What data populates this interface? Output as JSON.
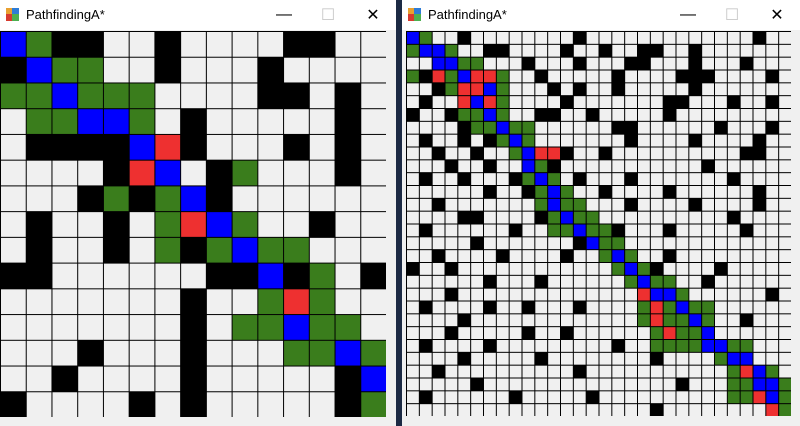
{
  "colors": {
    "wall": "#000000",
    "empty": "#f0f0f0",
    "path": "#0000ff",
    "closed": "#3a7d1c",
    "open": "#ee3030",
    "gridline": "#000000"
  },
  "windows": [
    {
      "title": "PathfindingA*",
      "controls": {
        "minimize": "—",
        "maximize": "☐",
        "close": "✕"
      },
      "grid": {
        "size": 15,
        "rows": [
          "PCWWEEWEEEEWWEE",
          "WPCCEEWEEEWEEEE",
          "CCPCCCEEEEWWEWE",
          "ECCPPCEWEEEEEWE",
          "EWWWWPOWEEEWEWE",
          "EEEEWOPEWCEEEWE",
          "EEEWCWCPWEEEEEE",
          "EWEEWECOPCEEWEE",
          "EWEEWECWCPCCEEE",
          "WWEEEEEEWWPWCEW",
          "EEEEEEEWEECOCEE",
          "EEEEEEEWECCPCCE",
          "EEEWEEEWEEECCPC",
          "EEWEEEEWEEEEEWP",
          "WEEEEWEWEEEEEWC"
        ]
      }
    },
    {
      "title": "PathfindingA*",
      "controls": {
        "minimize": "—",
        "maximize": "☐",
        "close": "✕"
      },
      "grid": {
        "size": 30,
        "rows": [
          "PCEEWEEEEEEEEWEEEEEEEEEEEEEWEE",
          "CPPCEEWWEEEEWEEWEEWWEEWEEEEEEE",
          "EEPPCCEEEWEEEWEEEWWEEEWEEEWEEE",
          "CWOCPOOCEEWEEEEEWEEEEWWWEEEEWE",
          "EEWCOOPCEEEWEWEEWEEEEEWEEEEEEE",
          "EWEEOPOCEEEEWEEEEEEEWWEEEWEEWE",
          "WEEWCCPCEEWWEEWEEEEEWEEEEEEEEE",
          "EEEEWCCPCCEEEEEEWWEEEEEEWEEEWE",
          "EWEEWEWCPCEEEEEEEWEEEEWEEEEWEE",
          "EEWEEWEECPOOWEEWEEEEEEEEEEWWEE",
          "EEEWEEWEEPCWEEEEEEEEEEEWEEEEEE",
          "EWEEWEEEWCPCEWEEEWEEEEEEEWEEEE",
          "EEEEEEWEEWCPCEEWEEEEWEEEEEEWEE",
          "EEWEEEEEEECPCCEEEWEEEEWEEEEWEE",
          "EEEEWWEEEEWCPCCEEEEEEEEEEWEEEE",
          "EWEEEEEEWEECCPCCWEEEWEEEEEWEEE",
          "EEEEEWEEEEEEEWPCCEEEEEEEEEEEEE",
          "EEWEEEEWEEEEWEECPCEEWEEEEEEEEE",
          "WEEWEEEEEEEEEEEECPCWEEEEWEEEEE",
          "EEEEEEWEEEWEEEEEECPCCEEWEEEEEE",
          "EEEWEEEEEEEEEEEEEEOPPCEEEEEEWE",
          "EWEEEEWEEWEEEWEEEECOCPCCEEEEEE",
          "EEEEWEEEEEEEEEEEEECOCCPCEEWEEE",
          "EEEWEEEEEWEEWEEEEEECOCCPEEEEEE",
          "EWEEEEWEEEEEEEEEWEECCCCPPCCEEE",
          "EEEEWEEEEEWEEEEEEEEWEEEECPPEEE",
          "EEWEEEEEEEEEEWEEEEEEEEEEECOPCE",
          "EEEEEWEEEEEEEEEEEEEEEWEEECCPPC",
          "EWEEEEEEWEEEEEWEEEEEEEEEECCOPC",
          "EEEEEEEEEEEEEEEEEEEWEEEEEEEEOC"
        ]
      }
    }
  ]
}
